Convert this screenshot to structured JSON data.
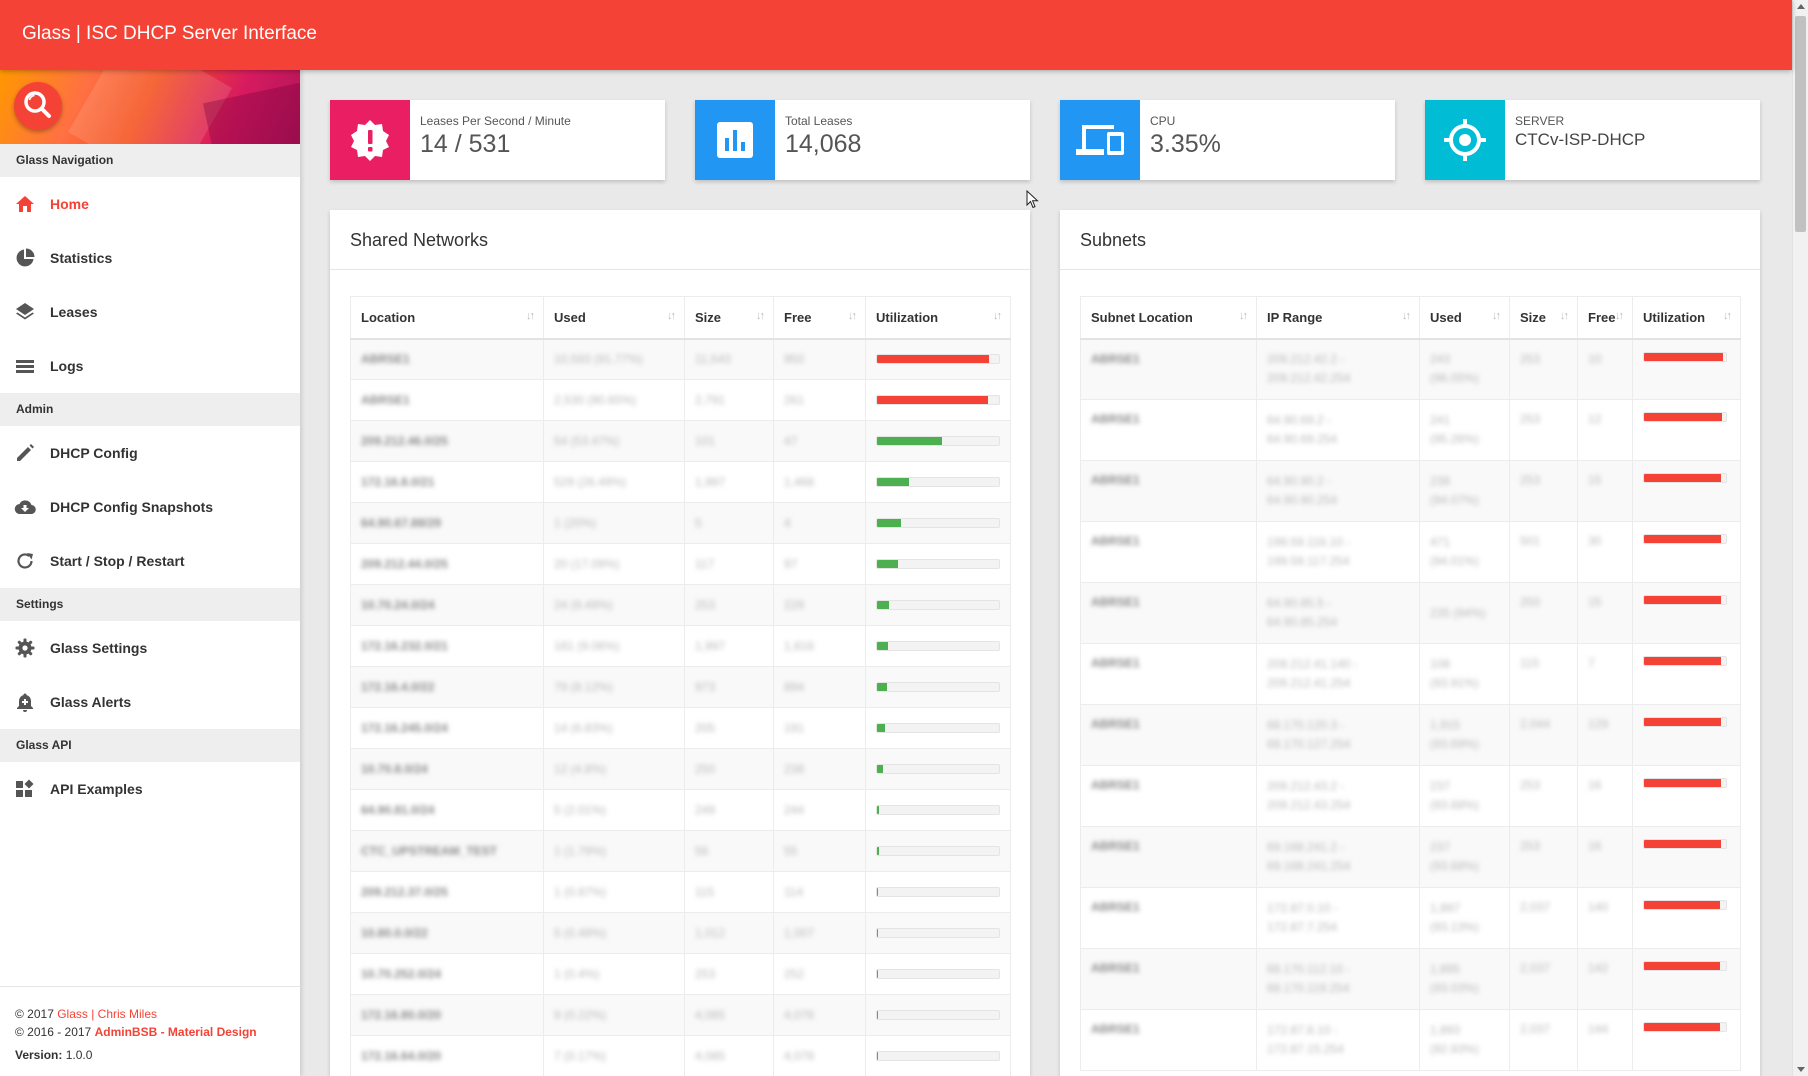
{
  "app": {
    "title": "Glass | ISC DHCP Server Interface"
  },
  "colors": {
    "accent": "#f44336",
    "pink": "#e91e63",
    "blue": "#2196f3",
    "cyan": "#00bcd4",
    "green": "#4caf50",
    "red": "#f44336"
  },
  "sidebar": {
    "sections": [
      {
        "header": "Glass Navigation",
        "items": [
          {
            "label": "Home",
            "icon": "home-icon",
            "active": true
          },
          {
            "label": "Statistics",
            "icon": "pie-chart-icon"
          },
          {
            "label": "Leases",
            "icon": "layers-icon"
          },
          {
            "label": "Logs",
            "icon": "list-icon"
          }
        ]
      },
      {
        "header": "Admin",
        "items": [
          {
            "label": "DHCP Config",
            "icon": "pencil-icon"
          },
          {
            "label": "DHCP Config Snapshots",
            "icon": "cloud-download-icon"
          },
          {
            "label": "Start / Stop / Restart",
            "icon": "refresh-icon"
          }
        ]
      },
      {
        "header": "Settings",
        "items": [
          {
            "label": "Glass Settings",
            "icon": "gear-icon"
          },
          {
            "label": "Glass Alerts",
            "icon": "bell-icon"
          }
        ]
      },
      {
        "header": "Glass API",
        "items": [
          {
            "label": "API Examples",
            "icon": "widgets-icon"
          }
        ]
      }
    ],
    "footer": {
      "copy1_prefix": "© 2017 ",
      "copy1_link": "Glass | Chris Miles",
      "copy2_prefix": "© 2016 - 2017 ",
      "copy2_link": "AdminBSB - Material Design",
      "version_label": "Version:",
      "version_value": " 1.0.0"
    }
  },
  "stats": [
    {
      "label": "Leases Per Second / Minute",
      "value": "14 / 531",
      "icon": "alert-badge-icon",
      "color": "#e91e63"
    },
    {
      "label": "Total Leases",
      "value": "14,068",
      "icon": "bar-chart-icon",
      "color": "#2196f3"
    },
    {
      "label": "CPU",
      "value": "3.35%",
      "icon": "devices-icon",
      "color": "#2196f3"
    },
    {
      "label": "SERVER",
      "value": "CTCv-ISP-DHCP",
      "icon": "target-icon",
      "color": "#00bcd4"
    }
  ],
  "shared_networks": {
    "title": "Shared Networks",
    "columns": [
      "Location",
      "Used",
      "Size",
      "Free",
      "Utilization"
    ],
    "rows": [
      {
        "location": "ABRSE1",
        "used": "10,593 (91.77%)",
        "size": "11,543",
        "free": "950",
        "util": 91.77
      },
      {
        "location": "ABRSE1",
        "used": "2,530 (90.65%)",
        "size": "2,791",
        "free": "261",
        "util": 90.65
      },
      {
        "location": "209.212.46.0/25",
        "used": "54 (53.47%)",
        "size": "101",
        "free": "47",
        "util": 53.47
      },
      {
        "location": "172.16.8.0/21",
        "used": "529 (26.49%)",
        "size": "1,997",
        "free": "1,468",
        "util": 26.49
      },
      {
        "location": "64.90.67.88/29",
        "used": "1 (20%)",
        "size": "5",
        "free": "4",
        "util": 20
      },
      {
        "location": "209.212.44.0/25",
        "used": "20 (17.09%)",
        "size": "117",
        "free": "97",
        "util": 17.09
      },
      {
        "location": "10.70.24.0/24",
        "used": "24 (9.49%)",
        "size": "253",
        "free": "229",
        "util": 9.49
      },
      {
        "location": "172.16.232.0/21",
        "used": "181 (9.06%)",
        "size": "1,997",
        "free": "1,816",
        "util": 9.06
      },
      {
        "location": "172.16.4.0/22",
        "used": "79 (8.12%)",
        "size": "973",
        "free": "894",
        "util": 8.12
      },
      {
        "location": "172.16.245.0/24",
        "used": "14 (6.83%)",
        "size": "205",
        "free": "191",
        "util": 6.83
      },
      {
        "location": "10.70.8.0/24",
        "used": "12 (4.8%)",
        "size": "250",
        "free": "238",
        "util": 4.8
      },
      {
        "location": "64.90.81.0/24",
        "used": "5 (2.01%)",
        "size": "249",
        "free": "244",
        "util": 2.01
      },
      {
        "location": "CTC_UPSTREAM_TEST",
        "used": "1 (1.79%)",
        "size": "56",
        "free": "55",
        "util": 1.79
      },
      {
        "location": "209.212.37.0/25",
        "used": "1 (0.87%)",
        "size": "115",
        "free": "114",
        "util": 0.87
      },
      {
        "location": "10.80.0.0/22",
        "used": "5 (0.49%)",
        "size": "1,012",
        "free": "1,007",
        "util": 0.49
      },
      {
        "location": "10.70.252.0/24",
        "used": "1 (0.4%)",
        "size": "253",
        "free": "252",
        "util": 0.4
      },
      {
        "location": "172.16.80.0/20",
        "used": "9 (0.22%)",
        "size": "4,085",
        "free": "4,076",
        "util": 0.22
      },
      {
        "location": "172.16.64.0/20",
        "used": "7 (0.17%)",
        "size": "4,085",
        "free": "4,078",
        "util": 0.17
      }
    ]
  },
  "subnets": {
    "title": "Subnets",
    "columns": [
      "Subnet Location",
      "IP Range",
      "Used",
      "Size",
      "Free",
      "Utilization"
    ],
    "rows": [
      {
        "location": "ABRSE1",
        "range1": "209.212.42.2 -",
        "range2": "209.212.42.254",
        "used1": "243",
        "used2": "(96.05%)",
        "size": "253",
        "free": "10",
        "util": 96.05
      },
      {
        "location": "ABRSE1",
        "range1": "64.90.69.2 -",
        "range2": "64.90.69.254",
        "used1": "241",
        "used2": "(95.26%)",
        "size": "253",
        "free": "12",
        "util": 95.26
      },
      {
        "location": "ABRSE1",
        "range1": "64.90.90.2 -",
        "range2": "64.90.90.254",
        "used1": "238",
        "used2": "(94.07%)",
        "size": "253",
        "free": "15",
        "util": 94.07
      },
      {
        "location": "ABRSE1",
        "range1": "199.59.116.10 -",
        "range2": "199.59.117.254",
        "used1": "471",
        "used2": "(94.01%)",
        "size": "501",
        "free": "30",
        "util": 94.01
      },
      {
        "location": "ABRSE1",
        "range1": "64.90.85.5 -",
        "range2": "64.90.85.254",
        "used1": "235 (94%)",
        "used2": "",
        "size": "250",
        "free": "15",
        "util": 94
      },
      {
        "location": "ABRSE1",
        "range1": "209.212.41.140 -",
        "range2": "209.212.41.254",
        "used1": "108",
        "used2": "(93.91%)",
        "size": "115",
        "free": "7",
        "util": 93.91
      },
      {
        "location": "ABRSE1",
        "range1": "68.170.120.3 -",
        "range2": "68.170.127.254",
        "used1": "1,915",
        "used2": "(93.69%)",
        "size": "2,044",
        "free": "129",
        "util": 93.69
      },
      {
        "location": "ABRSE1",
        "range1": "209.212.43.2 -",
        "range2": "209.212.43.254",
        "used1": "237",
        "used2": "(93.68%)",
        "size": "253",
        "free": "16",
        "util": 93.68
      },
      {
        "location": "ABRSE1",
        "range1": "69.168.241.2 -",
        "range2": "69.168.241.254",
        "used1": "237",
        "used2": "(93.68%)",
        "size": "253",
        "free": "16",
        "util": 93.68
      },
      {
        "location": "ABRSE1",
        "range1": "172.87.0.10 -",
        "range2": "172.87.7.254",
        "used1": "1,897",
        "used2": "(93.13%)",
        "size": "2,037",
        "free": "140",
        "util": 93.13
      },
      {
        "location": "ABRSE1",
        "range1": "68.170.112.10 -",
        "range2": "68.170.119.254",
        "used1": "1,895",
        "used2": "(93.03%)",
        "size": "2,037",
        "free": "142",
        "util": 93.03
      },
      {
        "location": "ABRSE1",
        "range1": "172.87.8.10 -",
        "range2": "172.87.15.254",
        "used1": "1,893",
        "used2": "(92.93%)",
        "size": "2,037",
        "free": "144",
        "util": 92.93
      }
    ]
  }
}
